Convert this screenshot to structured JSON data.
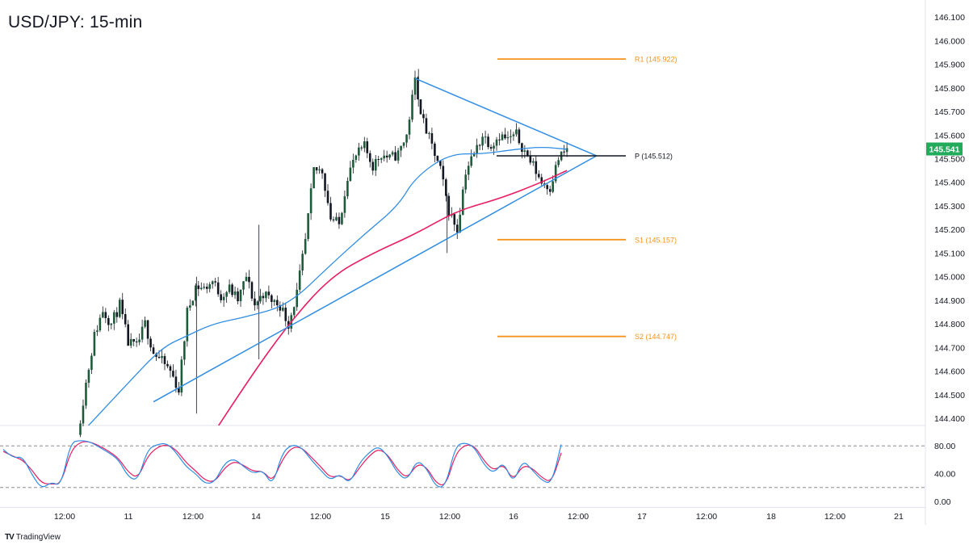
{
  "title": "USD/JPY: 15-min",
  "brand": {
    "logo": "TV",
    "name": "TradingView"
  },
  "colors": {
    "up": "#26a69a",
    "down": "#ef5350",
    "candle_body": "#1e5b3a",
    "trendline": "#2f8de4",
    "ma_fast": "#2f8de4",
    "ma_slow": "#e91e63",
    "pivot": "#131722",
    "levels": "#f7931a",
    "price_tag": "#22ab5b",
    "stoch_k": "#2f8de4",
    "stoch_d": "#e91e63"
  },
  "chart_data": {
    "type": "candlestick",
    "symbol": "USD/JPY",
    "timeframe": "15-min",
    "y_axis": {
      "ticks": [
        "144.400",
        "144.500",
        "144.600",
        "144.700",
        "144.800",
        "144.900",
        "145.000",
        "145.100",
        "145.200",
        "145.300",
        "145.400",
        "145.500",
        "145.600",
        "145.700",
        "145.800",
        "145.900",
        "146.000",
        "146.100"
      ]
    },
    "x_axis": {
      "ticks": [
        "12:00",
        "11",
        "12:00",
        "14",
        "12:00",
        "15",
        "12:00",
        "16",
        "12:00",
        "17",
        "12:00",
        "18",
        "12:00",
        "21"
      ]
    },
    "last_price": "145.541",
    "levels": [
      {
        "name": "R1",
        "label": "R1 (145.922)",
        "value": 145.922
      },
      {
        "name": "P",
        "label": "P (145.512)",
        "value": 145.512
      },
      {
        "name": "S1",
        "label": "S1 (145.157)",
        "value": 145.157
      },
      {
        "name": "S2",
        "label": "S2 (144.747)",
        "value": 144.747
      }
    ],
    "price_path": [
      [
        0,
        144.33
      ],
      [
        1,
        144.55
      ],
      [
        2,
        144.75
      ],
      [
        3,
        144.86
      ],
      [
        4,
        144.8
      ],
      [
        5,
        144.88
      ],
      [
        6,
        144.72
      ],
      [
        7,
        144.7
      ],
      [
        8,
        144.8
      ],
      [
        9,
        144.68
      ],
      [
        10,
        144.64
      ],
      [
        11,
        144.6
      ],
      [
        12,
        144.52
      ],
      [
        13,
        144.85
      ],
      [
        14,
        144.96
      ],
      [
        15,
        144.95
      ],
      [
        16,
        144.98
      ],
      [
        17,
        144.92
      ],
      [
        18,
        144.95
      ],
      [
        19,
        144.9
      ],
      [
        20,
        145.0
      ],
      [
        21,
        144.88
      ],
      [
        22,
        144.93
      ],
      [
        23,
        144.9
      ],
      [
        24,
        144.88
      ],
      [
        25,
        144.8
      ],
      [
        26,
        144.93
      ],
      [
        27,
        145.15
      ],
      [
        28,
        145.45
      ],
      [
        29,
        145.45
      ],
      [
        30,
        145.25
      ],
      [
        31,
        145.22
      ],
      [
        32,
        145.43
      ],
      [
        33,
        145.51
      ],
      [
        34,
        145.55
      ],
      [
        35,
        145.47
      ],
      [
        36,
        145.52
      ],
      [
        37,
        145.5
      ],
      [
        38,
        145.52
      ],
      [
        39,
        145.6
      ],
      [
        40,
        145.83
      ],
      [
        41,
        145.65
      ],
      [
        42,
        145.55
      ],
      [
        43,
        145.45
      ],
      [
        44,
        145.28
      ],
      [
        45,
        145.2
      ],
      [
        46,
        145.45
      ],
      [
        47,
        145.52
      ],
      [
        48,
        145.6
      ],
      [
        49,
        145.56
      ],
      [
        50,
        145.6
      ],
      [
        51,
        145.58
      ],
      [
        52,
        145.6
      ],
      [
        53,
        145.53
      ],
      [
        54,
        145.47
      ],
      [
        55,
        145.4
      ],
      [
        56,
        145.38
      ],
      [
        57,
        145.5
      ],
      [
        58,
        145.54
      ]
    ],
    "indicators": {
      "ma_fast_anchors": [
        [
          0,
          144.32
        ],
        [
          6,
          144.55
        ],
        [
          10,
          144.7
        ],
        [
          13,
          144.75
        ],
        [
          16,
          144.8
        ],
        [
          20,
          144.83
        ],
        [
          25,
          144.88
        ],
        [
          30,
          145.05
        ],
        [
          34,
          145.18
        ],
        [
          38,
          145.3
        ],
        [
          40,
          145.42
        ],
        [
          44,
          145.52
        ],
        [
          48,
          145.52
        ],
        [
          52,
          145.54
        ],
        [
          55,
          145.55
        ],
        [
          58,
          145.54
        ]
      ],
      "ma_slow_anchors": [
        [
          16,
          144.33
        ],
        [
          20,
          144.55
        ],
        [
          25,
          144.8
        ],
        [
          30,
          145.0
        ],
        [
          35,
          145.1
        ],
        [
          40,
          145.18
        ],
        [
          45,
          145.28
        ],
        [
          50,
          145.33
        ],
        [
          55,
          145.4
        ],
        [
          58,
          145.45
        ]
      ],
      "trendlines": [
        {
          "from": [
            9,
            144.47
          ],
          "to": [
            61.5,
            145.512
          ]
        },
        {
          "from": [
            40,
            145.84
          ],
          "to": [
            61.5,
            145.512
          ]
        }
      ]
    },
    "stochastic": {
      "y_ticks": [
        "80.00",
        "40.00",
        "0.00"
      ],
      "overbought": 80,
      "oversold": 20,
      "k": [
        75,
        62,
        65,
        38,
        18,
        28,
        22,
        85,
        88,
        86,
        78,
        70,
        60,
        35,
        30,
        75,
        82,
        84,
        70,
        50,
        40,
        25,
        28,
        55,
        62,
        50,
        40,
        45,
        22,
        70,
        82,
        78,
        60,
        45,
        30,
        40,
        25,
        55,
        70,
        80,
        65,
        40,
        30,
        60,
        48,
        20,
        22,
        80,
        85,
        78,
        52,
        40,
        58,
        25,
        60,
        45,
        30,
        25,
        82
      ],
      "d": [
        72,
        65,
        60,
        45,
        26,
        25,
        25,
        72,
        86,
        86,
        80,
        72,
        62,
        42,
        33,
        65,
        78,
        82,
        74,
        56,
        44,
        30,
        28,
        48,
        58,
        52,
        43,
        44,
        28,
        60,
        78,
        78,
        64,
        50,
        34,
        38,
        28,
        48,
        65,
        76,
        67,
        45,
        33,
        54,
        50,
        26,
        22,
        68,
        82,
        80,
        58,
        44,
        54,
        30,
        52,
        48,
        34,
        27,
        70
      ]
    }
  }
}
